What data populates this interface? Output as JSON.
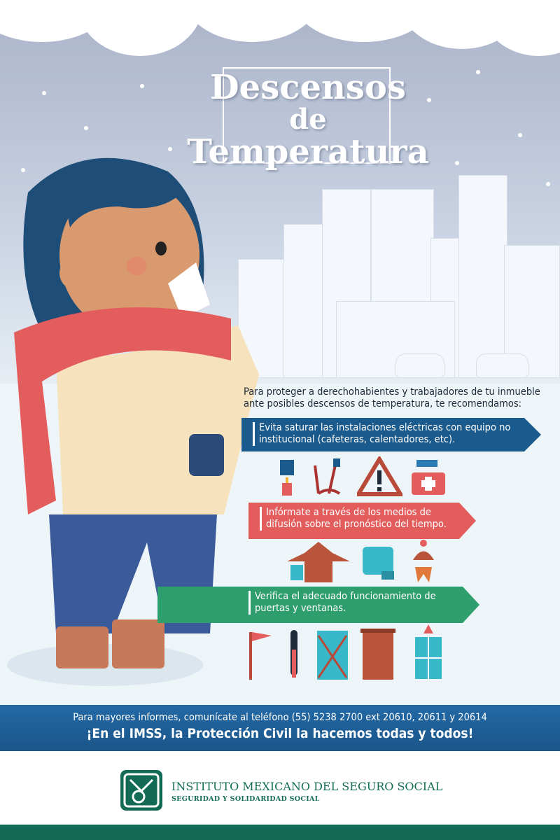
{
  "title": {
    "line1": "Descensos",
    "line2": "de",
    "line3": "Temperatura"
  },
  "intro": "Para proteger a derechohabientes y trabajadores de tu inmueble ante posibles descensos de temperatura, te recomendamos:",
  "recommendations": [
    {
      "text": "Evita saturar las instalaciones eléctricas con equipo no institucional (cafeteras, calentadores, etc).",
      "color": "#1b5a8c",
      "icons": [
        "matches-candle-icon",
        "jumper-cables-icon",
        "warning-triangle-icon",
        "first-aid-kit-icon"
      ]
    },
    {
      "text": "Infórmate a través de los medios de difusión sobre el pronóstico del tiempo.",
      "color": "#e35d5d",
      "icons": [
        "warm-clothes-icon",
        "blanket-icon",
        "winter-hat-scarf-icon"
      ]
    },
    {
      "text": "Verifica el adecuado funcionamiento de puertas y ventanas.",
      "color": "#2f9e6f",
      "icons": [
        "flag-icon",
        "thermometer-icon",
        "window-frost-icon",
        "door-icon",
        "window-icon"
      ]
    }
  ],
  "footer": {
    "contact": "Para mayores informes, comunícate al teléfono (55) 5238 2700 ext 20610, 20611 y 20614",
    "slogan": "¡En el IMSS, la Protección Civil la hacemos todas y todos!"
  },
  "organization": {
    "name": "INSTITUTO MEXICANO DEL SEGURO SOCIAL",
    "tagline": "SEGURIDAD Y SOLIDARIDAD SOCIAL"
  },
  "colors": {
    "blue": "#1b5a8c",
    "red": "#e35d5d",
    "green": "#2f9e6f",
    "imss_green": "#146b55"
  }
}
